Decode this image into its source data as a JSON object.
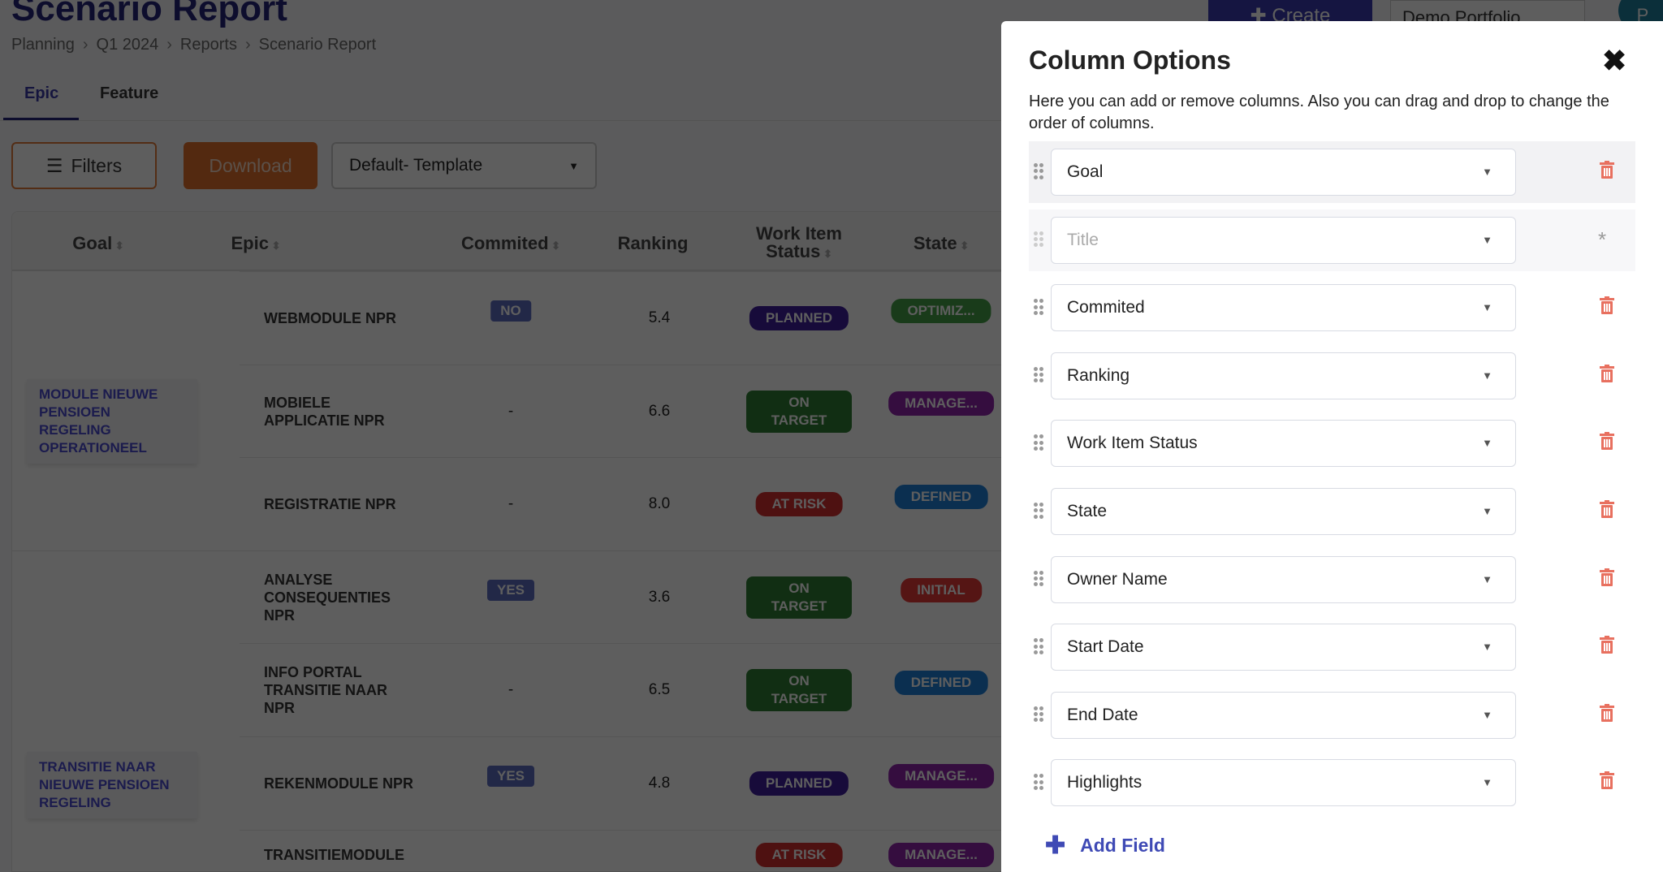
{
  "page": {
    "title": "Scenario Report",
    "breadcrumb": [
      "Planning",
      "Q1 2024",
      "Reports",
      "Scenario Report"
    ],
    "tabs": [
      "Epic",
      "Feature"
    ],
    "filters_label": "Filters",
    "download_label": "Download",
    "template_value": "Default- Template"
  },
  "table": {
    "headers": [
      "Goal",
      "Epic",
      "Commited",
      "Ranking",
      "Work Item Status",
      "State"
    ],
    "goals": [
      "MODULE NIEUWE PENSIOEN REGELING OPERATIONEEL",
      "TRANSITIE NAAR NIEUWE PENSIOEN REGELING"
    ],
    "rows": [
      {
        "epic": "WEBMODULE NPR",
        "commited": "NO",
        "ranking": "5.4",
        "status": "PLANNED",
        "state": "OPTIMIZ..."
      },
      {
        "epic": "MOBIELE APPLICATIE NPR",
        "commited": "-",
        "ranking": "6.6",
        "status": "ON TARGET",
        "state": "MANAGE..."
      },
      {
        "epic": "REGISTRATIE NPR",
        "commited": "-",
        "ranking": "8.0",
        "status": "AT RISK",
        "state": "DEFINED"
      },
      {
        "epic": "ANALYSE CONSEQUENTIES NPR",
        "commited": "YES",
        "ranking": "3.6",
        "status": "ON TARGET",
        "state": "INITIAL"
      },
      {
        "epic": "INFO PORTAL TRANSITIE NAAR NPR",
        "commited": "-",
        "ranking": "6.5",
        "status": "ON TARGET",
        "state": "DEFINED"
      },
      {
        "epic": "REKENMODULE NPR",
        "commited": "YES",
        "ranking": "4.8",
        "status": "PLANNED",
        "state": "MANAGE..."
      },
      {
        "epic": "TRANSITIEMODULE",
        "commited": "",
        "ranking": "",
        "status": "AT RISK",
        "state": "MANAGE..."
      }
    ]
  },
  "badge_colors": {
    "NO": "#5c6bc0",
    "YES": "#5c6bc0",
    "PLANNED": "#3f1d9c",
    "ON TARGET": "#2e7d32",
    "AT RISK": "#d32f2f",
    "OPTIMIZ...": "#43a047",
    "MANAGE...": "#8e24aa",
    "DEFINED": "#1e7fd8",
    "INITIAL": "#e53935"
  },
  "header": {
    "create_label": "Create",
    "portfolio": "Demo Portfolio",
    "avatar": "P"
  },
  "panel": {
    "title": "Column Options",
    "description": "Here you can add or remove columns. Also you can drag and drop to change the order of columns.",
    "fields": [
      {
        "value": "Goal"
      },
      {
        "value": "Title",
        "locked": true
      },
      {
        "value": "Commited"
      },
      {
        "value": "Ranking"
      },
      {
        "value": "Work Item Status"
      },
      {
        "value": "State"
      },
      {
        "value": "Owner Name"
      },
      {
        "value": "Start Date"
      },
      {
        "value": "End Date"
      },
      {
        "value": "Highlights"
      }
    ],
    "add_label": "Add Field"
  }
}
